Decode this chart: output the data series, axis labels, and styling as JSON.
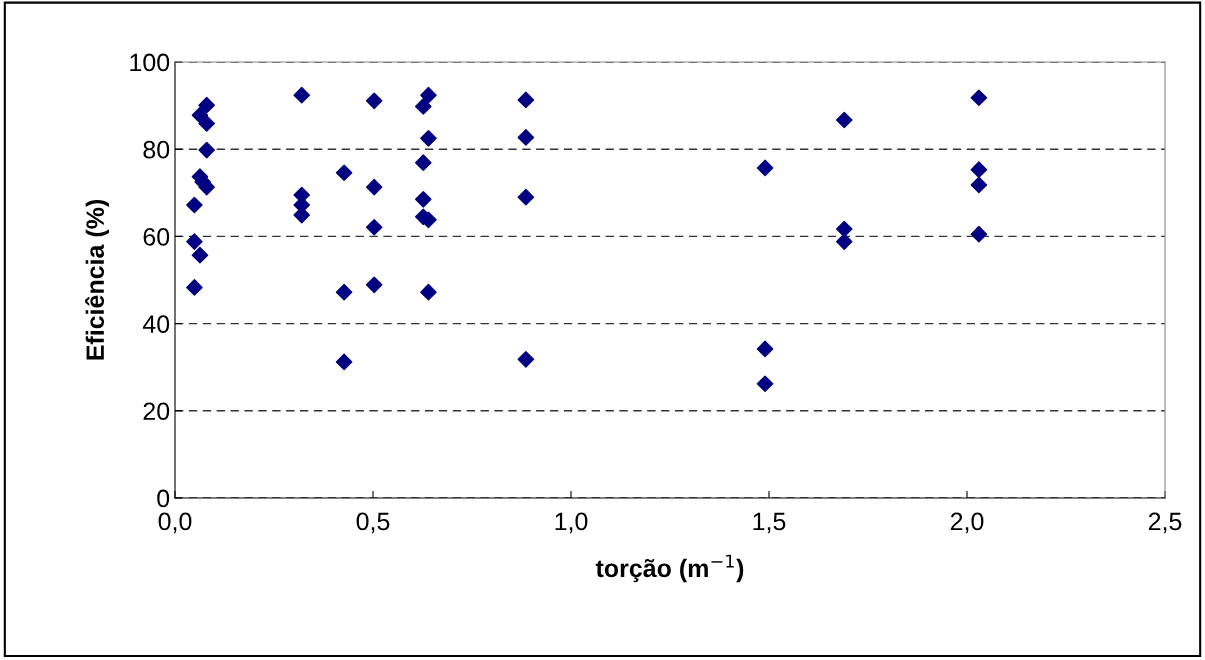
{
  "chart_data": {
    "type": "scatter",
    "xlabel": "torção (m$^{−1}$)",
    "ylabel": "Eficiência (%)",
    "x": [
      0.049,
      0.049,
      0.049,
      0.063,
      0.063,
      0.063,
      0.07,
      0.08,
      0.08,
      0.08,
      0.08,
      0.32,
      0.32,
      0.32,
      0.32,
      0.427,
      0.427,
      0.427,
      0.503,
      0.503,
      0.503,
      0.503,
      0.627,
      0.627,
      0.627,
      0.627,
      0.64,
      0.64,
      0.64,
      0.64,
      0.886,
      0.886,
      0.886,
      0.886,
      1.49,
      1.49,
      1.49,
      1.69,
      1.69,
      1.69,
      2.03,
      2.03,
      2.03,
      2.03
    ],
    "series": [
      {
        "color": "#000080",
        "values": [
          67.2,
          58.8,
          48.3,
          87.8,
          73.7,
          55.7,
          72.5,
          90.1,
          85.9,
          79.8,
          71.3,
          92.4,
          69.5,
          67.2,
          64.9,
          74.6,
          47.2,
          31.2,
          91.1,
          71.3,
          62.1,
          48.9,
          89.8,
          76.9,
          68.5,
          64.5,
          92.4,
          82.5,
          63.8,
          47.2,
          91.3,
          82.7,
          69,
          31.8,
          75.7,
          34.2,
          26.2,
          86.7,
          61.7,
          58.8,
          91.8,
          75.3,
          71.8,
          60.5
        ]
      }
    ],
    "xlim": [
      0,
      2.5
    ],
    "xticks": [
      {
        "value": 0,
        "label": "0,0"
      },
      {
        "value": 0.5,
        "label": "0,5"
      },
      {
        "value": 1,
        "label": "1,0"
      },
      {
        "value": 1.5,
        "label": "1,5"
      },
      {
        "value": 2,
        "label": "2,0"
      },
      {
        "value": 2.5,
        "label": "2,5"
      }
    ],
    "ylim": [
      0,
      100
    ],
    "yticks": [
      0,
      20,
      40,
      60,
      80,
      100
    ],
    "grid": "y",
    "marker": "diamond"
  }
}
